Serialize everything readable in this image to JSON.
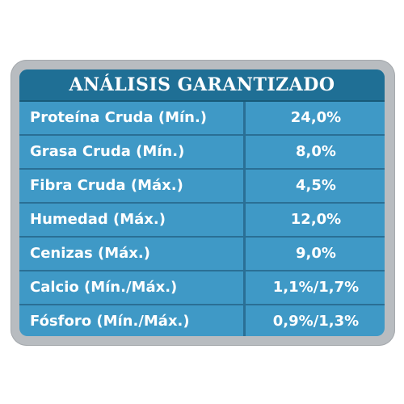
{
  "title": "ANÁLISIS GARANTIZADO",
  "rows": [
    {
      "label": "Proteína Cruda (Mín.)",
      "value": "24,0%"
    },
    {
      "label": "Grasa Cruda (Mín.)",
      "value": "8,0%"
    },
    {
      "label": "Fibra Cruda (Máx.)",
      "value": "4,5%"
    },
    {
      "label": "Humedad (Máx.)",
      "value": "12,0%"
    },
    {
      "label": "Cenizas (Máx.)",
      "value": "9,0%"
    },
    {
      "label": "Calcio (Mín./Máx.)",
      "value": "1,1%/1,7%"
    },
    {
      "label": "Fósforo (Mín./Máx.)",
      "value": "0,9%/1,3%"
    }
  ],
  "colors": {
    "header": "#1f6f95",
    "body": "#3f99c6",
    "frame": "#b8bcc0",
    "text": "#ffffff"
  }
}
